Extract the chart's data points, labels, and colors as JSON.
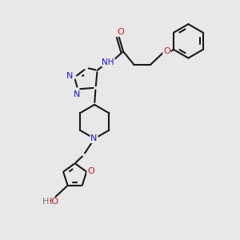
{
  "bg_color": "#e8e8e8",
  "bc": "#1a1a1a",
  "nc": "#1a1acc",
  "oc": "#cc1a1a",
  "hc": "#607878",
  "lw": 1.5,
  "fs": 8.0,
  "dbo": 0.06,
  "xlim": [
    0,
    10
  ],
  "ylim": [
    0,
    10
  ]
}
